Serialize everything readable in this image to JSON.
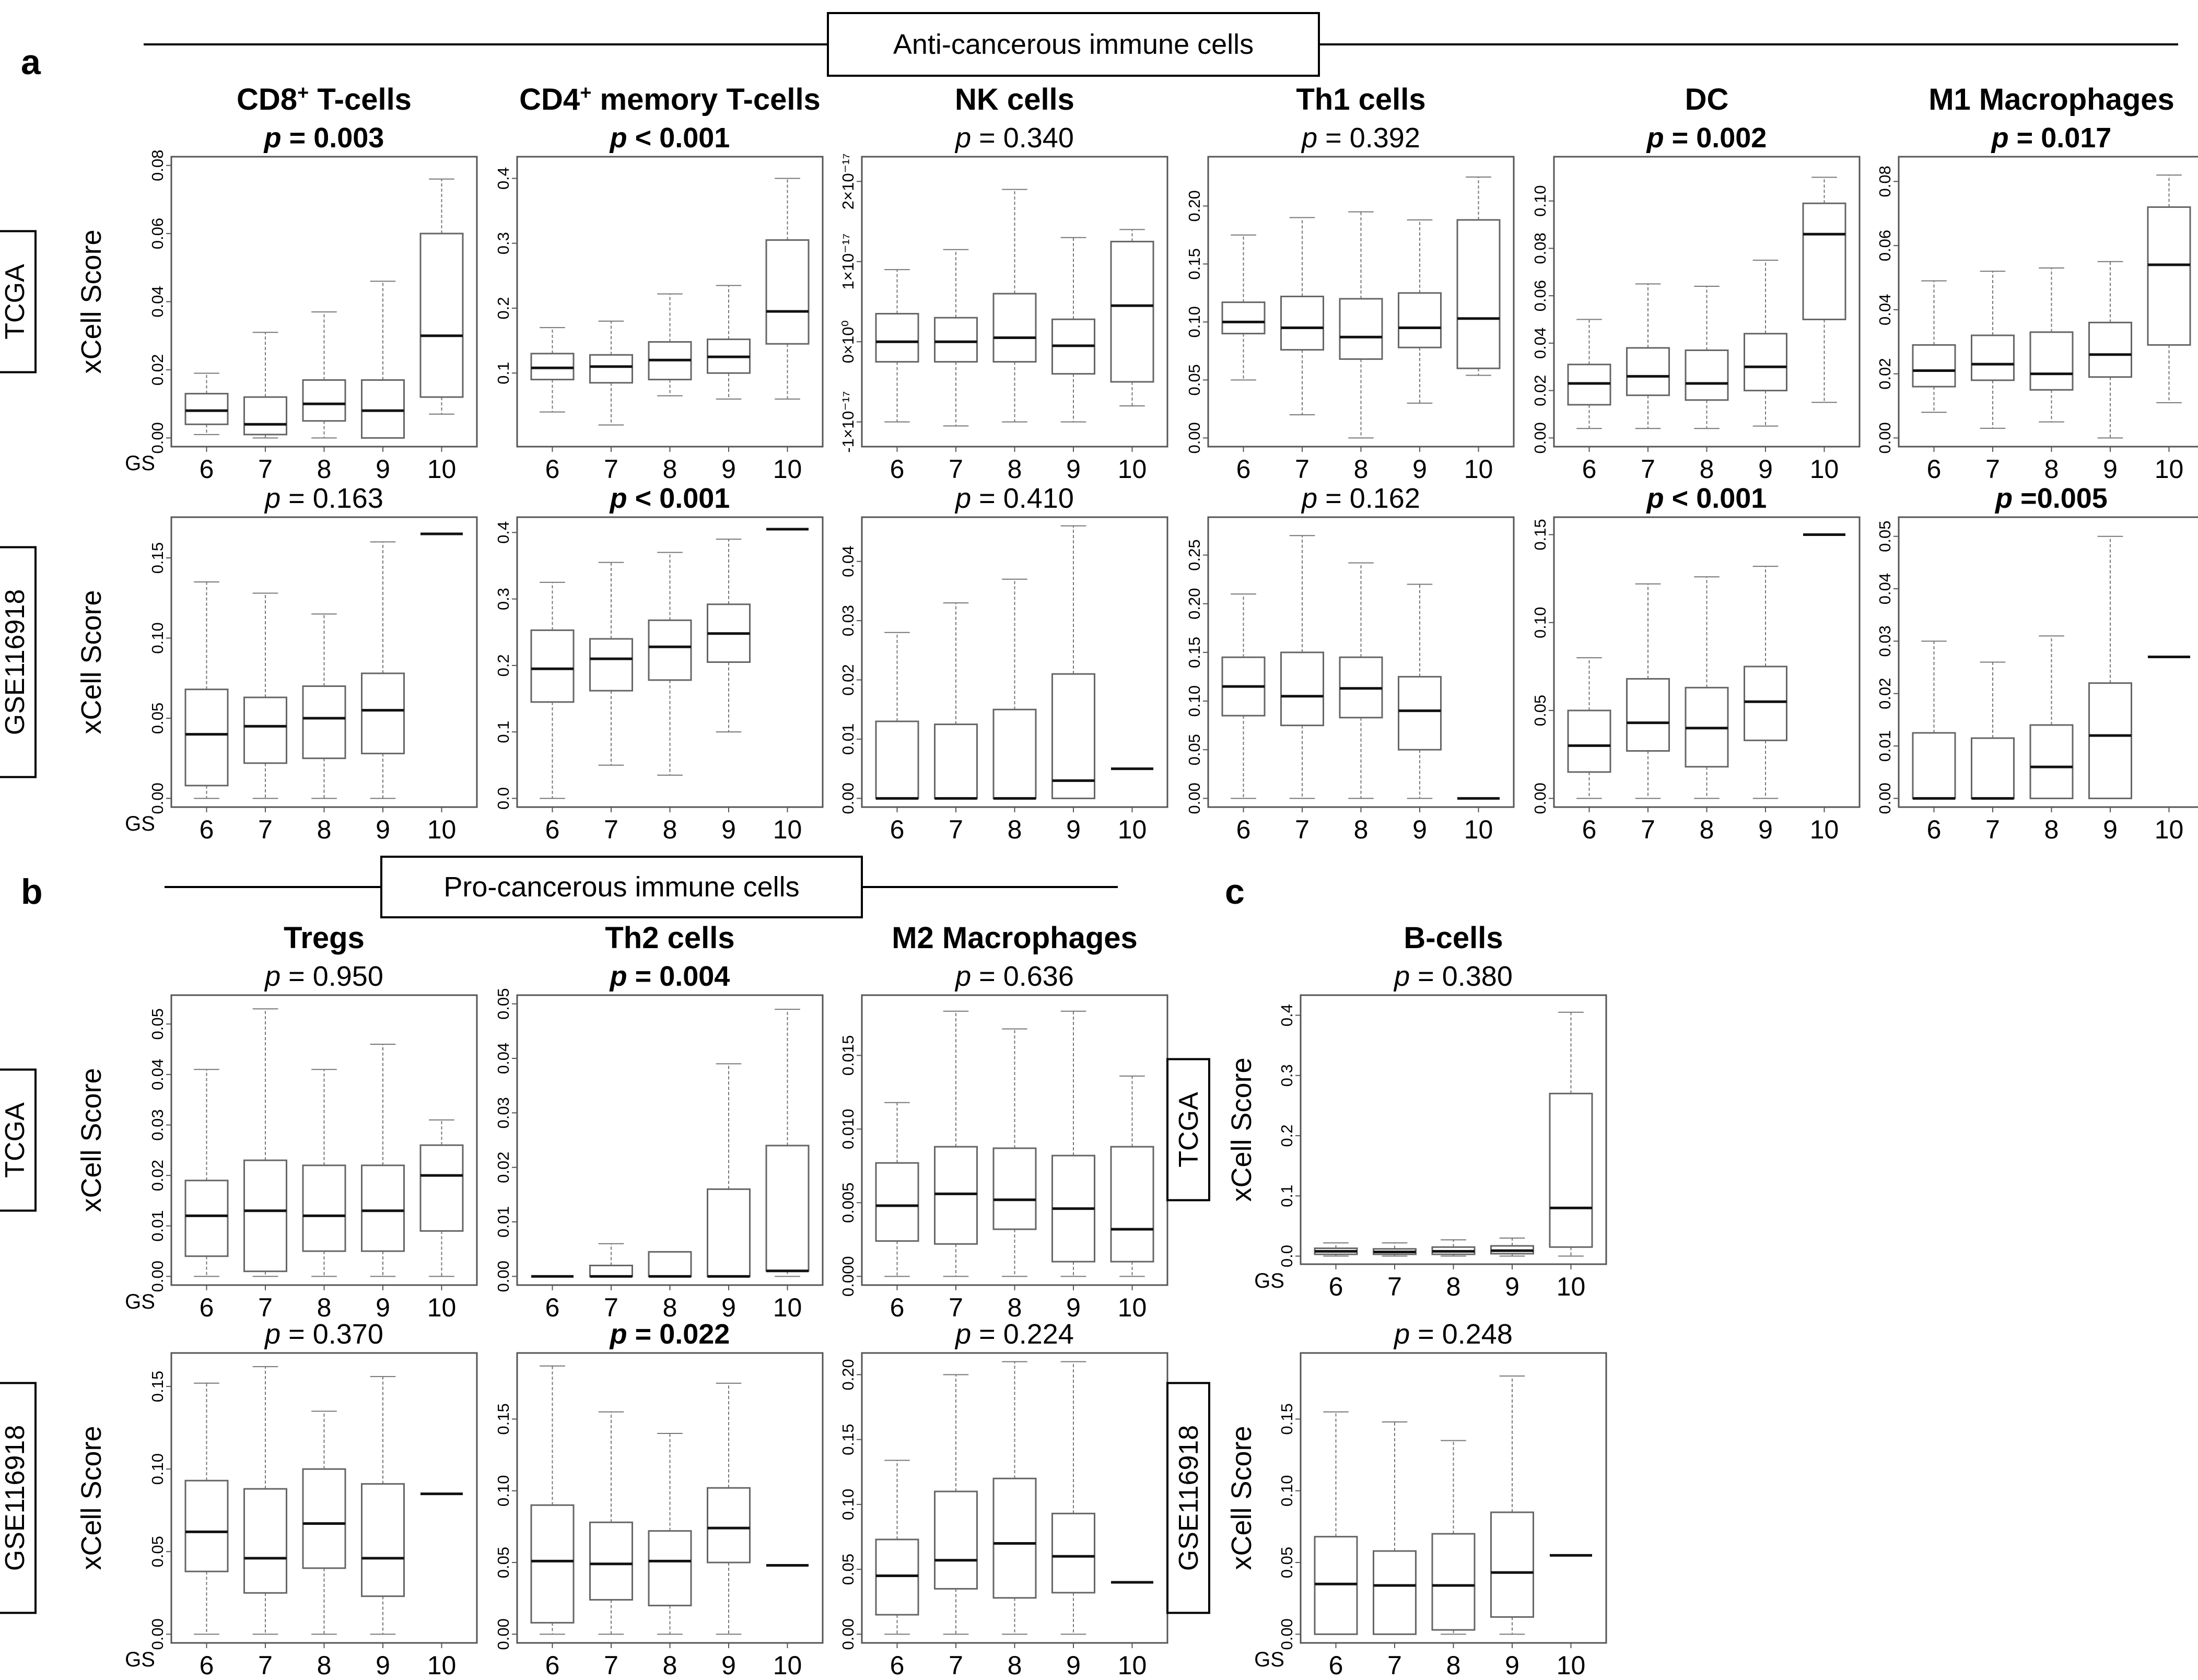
{
  "figure": {
    "sections": [
      {
        "letter": "a",
        "header": "Anti-cancerous immune cells"
      },
      {
        "letter": "b",
        "header": "Pro-cancerous immune cells"
      },
      {
        "letter": "c",
        "header": ""
      }
    ],
    "ylabel": "xCell Score",
    "gs_label": "GS",
    "datasets": [
      "TCGA",
      "GSE116918"
    ]
  },
  "chart_data": [
    {
      "type": "box",
      "section": "a",
      "cell": "CD8+ T-cells",
      "title": "CD8",
      "title_sup": "+",
      "title_rest": " T-cells",
      "dataset": "TCGA",
      "p": "0.003",
      "significant": true,
      "categories": [
        "6",
        "7",
        "8",
        "9",
        "10"
      ],
      "ylim": [
        0,
        0.08
      ],
      "yticks": [
        "0.00",
        "0.02",
        "0.04",
        "0.06",
        "0.08"
      ],
      "boxes": [
        [
          0.001,
          0.004,
          0.008,
          0.013,
          0.019
        ],
        [
          0.0,
          0.001,
          0.004,
          0.012,
          0.031
        ],
        [
          0.0,
          0.005,
          0.01,
          0.017,
          0.037
        ],
        [
          0.0,
          0.0,
          0.008,
          0.017,
          0.046
        ],
        [
          0.007,
          0.012,
          0.03,
          0.06,
          0.076
        ]
      ]
    },
    {
      "type": "box",
      "section": "a",
      "cell": "CD4+ memory T-cells",
      "title": "CD4",
      "title_sup": "+",
      "title_rest": " memory T-cells",
      "dataset": "TCGA",
      "p": "< 0.001",
      "significant": true,
      "categories": [
        "6",
        "7",
        "8",
        "9",
        "10"
      ],
      "ylim": [
        0.0,
        0.42
      ],
      "yticks": [
        "0.1",
        "0.2",
        "0.3",
        "0.4"
      ],
      "boxes": [
        [
          0.04,
          0.09,
          0.108,
          0.13,
          0.17
        ],
        [
          0.02,
          0.085,
          0.11,
          0.128,
          0.18
        ],
        [
          0.065,
          0.09,
          0.12,
          0.148,
          0.222
        ],
        [
          0.06,
          0.1,
          0.125,
          0.152,
          0.235
        ],
        [
          0.06,
          0.145,
          0.195,
          0.305,
          0.4
        ]
      ]
    },
    {
      "type": "box",
      "section": "a",
      "cell": "NK cells",
      "title": "NK cells",
      "dataset": "TCGA",
      "p": "0.340",
      "significant": false,
      "categories": [
        "6",
        "7",
        "8",
        "9",
        "10"
      ],
      "ylim": [
        -1.2,
        2.2
      ],
      "yticks": [
        "-1×10⁻¹⁷",
        "0×10⁰",
        "1×10⁻¹⁷",
        "2×10⁻¹⁷"
      ],
      "ytick_values": [
        -1,
        0,
        1,
        2
      ],
      "boxes": [
        [
          -1.0,
          -0.25,
          0.0,
          0.35,
          0.9
        ],
        [
          -1.05,
          -0.25,
          0.0,
          0.3,
          1.15
        ],
        [
          -1.0,
          -0.25,
          0.05,
          0.6,
          1.9
        ],
        [
          -1.0,
          -0.4,
          -0.05,
          0.28,
          1.3
        ],
        [
          -0.8,
          -0.5,
          0.45,
          1.25,
          1.4
        ]
      ]
    },
    {
      "type": "box",
      "section": "a",
      "cell": "Th1 cells",
      "title": "Th1 cells",
      "dataset": "TCGA",
      "p": "0.392",
      "significant": false,
      "categories": [
        "6",
        "7",
        "8",
        "9",
        "10"
      ],
      "ylim": [
        0,
        0.235
      ],
      "yticks": [
        "0.00",
        "0.05",
        "0.10",
        "0.15",
        "0.20"
      ],
      "boxes": [
        [
          0.05,
          0.09,
          0.1,
          0.117,
          0.175
        ],
        [
          0.02,
          0.076,
          0.095,
          0.122,
          0.19
        ],
        [
          0.0,
          0.068,
          0.087,
          0.12,
          0.195
        ],
        [
          0.03,
          0.078,
          0.095,
          0.125,
          0.188
        ],
        [
          0.054,
          0.06,
          0.103,
          0.188,
          0.225
        ]
      ]
    },
    {
      "type": "box",
      "section": "a",
      "cell": "DC",
      "title": "DC",
      "dataset": "TCGA",
      "p": "0.002",
      "significant": true,
      "categories": [
        "6",
        "7",
        "8",
        "9",
        "10"
      ],
      "ylim": [
        0,
        0.115
      ],
      "yticks": [
        "0.00",
        "0.02",
        "0.04",
        "0.06",
        "0.08",
        "0.10"
      ],
      "boxes": [
        [
          0.004,
          0.014,
          0.023,
          0.031,
          0.05
        ],
        [
          0.004,
          0.018,
          0.026,
          0.038,
          0.065
        ],
        [
          0.004,
          0.016,
          0.023,
          0.037,
          0.064
        ],
        [
          0.005,
          0.02,
          0.03,
          0.044,
          0.075
        ],
        [
          0.015,
          0.05,
          0.086,
          0.099,
          0.11
        ]
      ]
    },
    {
      "type": "box",
      "section": "a",
      "cell": "M1 Macrophages",
      "title": "M1 Macrophages",
      "dataset": "TCGA",
      "p": "0.017",
      "significant": true,
      "categories": [
        "6",
        "7",
        "8",
        "9",
        "10"
      ],
      "ylim": [
        0,
        0.085
      ],
      "yticks": [
        "0.00",
        "0.02",
        "0.04",
        "0.06",
        "0.08"
      ],
      "boxes": [
        [
          0.008,
          0.016,
          0.021,
          0.029,
          0.049
        ],
        [
          0.003,
          0.018,
          0.023,
          0.032,
          0.052
        ],
        [
          0.005,
          0.015,
          0.02,
          0.033,
          0.053
        ],
        [
          0.0,
          0.019,
          0.026,
          0.036,
          0.055
        ],
        [
          0.011,
          0.029,
          0.054,
          0.072,
          0.082
        ]
      ]
    },
    {
      "type": "box",
      "section": "a",
      "cell": "CD8+ T-cells",
      "dataset": "GSE116918",
      "p": "0.163",
      "significant": false,
      "categories": [
        "6",
        "7",
        "8",
        "9",
        "10"
      ],
      "ylim": [
        0,
        0.17
      ],
      "yticks": [
        "0.00",
        "0.05",
        "0.10",
        "0.15"
      ],
      "boxes": [
        [
          0.0,
          0.008,
          0.04,
          0.068,
          0.135
        ],
        [
          0.0,
          0.022,
          0.045,
          0.063,
          0.128
        ],
        [
          0.0,
          0.025,
          0.05,
          0.07,
          0.115
        ],
        [
          0.0,
          0.028,
          0.055,
          0.078,
          0.16
        ],
        [
          0.165,
          0.165,
          0.165,
          0.165,
          0.165
        ]
      ]
    },
    {
      "type": "box",
      "section": "a",
      "cell": "CD4+ memory T-cells",
      "dataset": "GSE116918",
      "p": "< 0.001",
      "significant": true,
      "categories": [
        "6",
        "7",
        "8",
        "9",
        "10"
      ],
      "ylim": [
        0,
        0.41
      ],
      "yticks": [
        "0.0",
        "0.1",
        "0.2",
        "0.3",
        "0.4"
      ],
      "boxes": [
        [
          0.0,
          0.145,
          0.195,
          0.253,
          0.325
        ],
        [
          0.05,
          0.162,
          0.21,
          0.24,
          0.355
        ],
        [
          0.035,
          0.178,
          0.228,
          0.268,
          0.37
        ],
        [
          0.1,
          0.205,
          0.248,
          0.292,
          0.39
        ],
        [
          0.405,
          0.405,
          0.405,
          0.405,
          0.405
        ]
      ]
    },
    {
      "type": "box",
      "section": "a",
      "cell": "NK cells",
      "dataset": "GSE116918",
      "p": "0.410",
      "significant": false,
      "categories": [
        "6",
        "7",
        "8",
        "9",
        "10"
      ],
      "ylim": [
        0,
        0.046
      ],
      "yticks": [
        "0.00",
        "0.01",
        "0.02",
        "0.03",
        "0.04"
      ],
      "boxes": [
        [
          0.0,
          0.0,
          0.0,
          0.013,
          0.028
        ],
        [
          0.0,
          0.0,
          0.0,
          0.0125,
          0.033
        ],
        [
          0.0,
          0.0,
          0.0,
          0.015,
          0.037
        ],
        [
          0.0,
          0.0,
          0.003,
          0.021,
          0.046
        ],
        [
          0.005,
          0.005,
          0.005,
          0.005,
          0.005
        ]
      ]
    },
    {
      "type": "box",
      "section": "a",
      "cell": "Th1 cells",
      "dataset": "GSE116918",
      "p": "0.162",
      "significant": false,
      "categories": [
        "6",
        "7",
        "8",
        "9",
        "10"
      ],
      "ylim": [
        0,
        0.28
      ],
      "yticks": [
        "0.00",
        "0.05",
        "0.10",
        "0.15",
        "0.20",
        "0.25"
      ],
      "boxes": [
        [
          0.0,
          0.085,
          0.115,
          0.145,
          0.21
        ],
        [
          0.0,
          0.075,
          0.105,
          0.15,
          0.27
        ],
        [
          0.0,
          0.083,
          0.113,
          0.145,
          0.242
        ],
        [
          0.0,
          0.05,
          0.09,
          0.125,
          0.22
        ],
        [
          0.0,
          0.0,
          0.0,
          0.0,
          0.0
        ]
      ]
    },
    {
      "type": "box",
      "section": "a",
      "cell": "DC",
      "dataset": "GSE116918",
      "p": "< 0.001",
      "significant": true,
      "categories": [
        "6",
        "7",
        "8",
        "9",
        "10"
      ],
      "ylim": [
        0,
        0.155
      ],
      "yticks": [
        "0.00",
        "0.05",
        "0.10",
        "0.15"
      ],
      "boxes": [
        [
          0.0,
          0.015,
          0.03,
          0.05,
          0.08
        ],
        [
          0.0,
          0.027,
          0.043,
          0.068,
          0.122
        ],
        [
          0.0,
          0.018,
          0.04,
          0.063,
          0.126
        ],
        [
          0.0,
          0.033,
          0.055,
          0.075,
          0.132
        ],
        [
          0.15,
          0.15,
          0.15,
          0.15,
          0.15
        ]
      ]
    },
    {
      "type": "box",
      "section": "a",
      "cell": "M1 Macrophages",
      "dataset": "GSE116918",
      "p": "=0.005",
      "significant": true,
      "categories": [
        "6",
        "7",
        "8",
        "9",
        "10"
      ],
      "ylim": [
        0,
        0.052
      ],
      "yticks": [
        "0.00",
        "0.01",
        "0.02",
        "0.03",
        "0.04",
        "0.05"
      ],
      "boxes": [
        [
          0.0,
          0.0,
          0.0,
          0.0125,
          0.03
        ],
        [
          0.0,
          0.0,
          0.0,
          0.0115,
          0.026
        ],
        [
          0.0,
          0.0,
          0.006,
          0.014,
          0.031
        ],
        [
          0.0,
          0.0,
          0.012,
          0.022,
          0.05
        ],
        [
          0.027,
          0.027,
          0.027,
          0.027,
          0.027
        ]
      ]
    },
    {
      "type": "box",
      "section": "b",
      "cell": "Tregs",
      "title": "Tregs",
      "dataset": "TCGA",
      "p": "0.950",
      "significant": false,
      "categories": [
        "6",
        "7",
        "8",
        "9",
        "10"
      ],
      "ylim": [
        0,
        0.054
      ],
      "yticks": [
        "0.00",
        "0.01",
        "0.02",
        "0.03",
        "0.04",
        "0.05"
      ],
      "boxes": [
        [
          0.0,
          0.004,
          0.012,
          0.019,
          0.041
        ],
        [
          0.0,
          0.001,
          0.013,
          0.023,
          0.053
        ],
        [
          0.0,
          0.005,
          0.012,
          0.022,
          0.041
        ],
        [
          0.0,
          0.005,
          0.013,
          0.022,
          0.046
        ],
        [
          0.0,
          0.009,
          0.02,
          0.026,
          0.031
        ]
      ]
    },
    {
      "type": "box",
      "section": "b",
      "cell": "Th2 cells",
      "title": "Th2 cells",
      "dataset": "TCGA",
      "p": "0.004",
      "significant": true,
      "categories": [
        "6",
        "7",
        "8",
        "9",
        "10"
      ],
      "ylim": [
        0,
        0.05
      ],
      "yticks": [
        "0.00",
        "0.01",
        "0.02",
        "0.03",
        "0.04",
        "0.05"
      ],
      "boxes": [
        [
          0.0,
          0.0,
          0.0,
          0.0,
          0.0
        ],
        [
          0.0,
          0.0,
          0.0,
          0.002,
          0.006
        ],
        [
          0.0,
          0.0,
          0.0,
          0.0045,
          0.0045
        ],
        [
          0.0,
          0.0,
          0.0,
          0.016,
          0.039
        ],
        [
          0.0,
          0.001,
          0.001,
          0.024,
          0.049
        ]
      ]
    },
    {
      "type": "box",
      "section": "b",
      "cell": "M2 Macrophages",
      "title": "M2 Macrophages",
      "dataset": "TCGA",
      "p": "0.636",
      "significant": false,
      "categories": [
        "6",
        "7",
        "8",
        "9",
        "10"
      ],
      "ylim": [
        0,
        0.0185
      ],
      "yticks": [
        "0.000",
        "0.005",
        "0.010",
        "0.015"
      ],
      "boxes": [
        [
          0.0,
          0.0024,
          0.0048,
          0.0077,
          0.0118
        ],
        [
          0.0,
          0.0022,
          0.0056,
          0.0088,
          0.018
        ],
        [
          0.0,
          0.0032,
          0.0052,
          0.0087,
          0.0168
        ],
        [
          0.0,
          0.001,
          0.0046,
          0.0082,
          0.018
        ],
        [
          0.0,
          0.001,
          0.0032,
          0.0088,
          0.0136
        ]
      ]
    },
    {
      "type": "box",
      "section": "b",
      "cell": "Tregs",
      "dataset": "GSE116918",
      "p": "0.370",
      "significant": false,
      "categories": [
        "6",
        "7",
        "8",
        "9",
        "10"
      ],
      "ylim": [
        0,
        0.165
      ],
      "yticks": [
        "0.00",
        "0.05",
        "0.10",
        "0.15"
      ],
      "boxes": [
        [
          0.0,
          0.038,
          0.062,
          0.093,
          0.152
        ],
        [
          0.0,
          0.025,
          0.046,
          0.088,
          0.162
        ],
        [
          0.0,
          0.04,
          0.067,
          0.1,
          0.135
        ],
        [
          0.0,
          0.023,
          0.046,
          0.091,
          0.156
        ],
        [
          0.085,
          0.085,
          0.085,
          0.085,
          0.085
        ]
      ]
    },
    {
      "type": "box",
      "section": "b",
      "cell": "Th2 cells",
      "dataset": "GSE116918",
      "p": "0.022",
      "significant": true,
      "categories": [
        "6",
        "7",
        "8",
        "9",
        "10"
      ],
      "ylim": [
        0,
        0.19
      ],
      "yticks": [
        "0.00",
        "0.05",
        "0.10",
        "0.15"
      ],
      "boxes": [
        [
          0.0,
          0.008,
          0.051,
          0.09,
          0.187
        ],
        [
          0.0,
          0.024,
          0.049,
          0.078,
          0.155
        ],
        [
          0.0,
          0.02,
          0.051,
          0.072,
          0.14
        ],
        [
          0.0,
          0.05,
          0.074,
          0.102,
          0.175
        ],
        [
          0.048,
          0.048,
          0.048,
          0.048,
          0.048
        ]
      ]
    },
    {
      "type": "box",
      "section": "b",
      "cell": "M2 Macrophages",
      "dataset": "GSE116918",
      "p": "0.224",
      "significant": false,
      "categories": [
        "6",
        "7",
        "8",
        "9",
        "10"
      ],
      "ylim": [
        0,
        0.21
      ],
      "yticks": [
        "0.00",
        "0.05",
        "0.10",
        "0.15",
        "0.20"
      ],
      "boxes": [
        [
          0.0,
          0.015,
          0.045,
          0.073,
          0.134
        ],
        [
          0.0,
          0.035,
          0.057,
          0.11,
          0.2
        ],
        [
          0.0,
          0.028,
          0.07,
          0.12,
          0.21
        ],
        [
          0.0,
          0.032,
          0.06,
          0.093,
          0.21
        ],
        [
          0.04,
          0.04,
          0.04,
          0.04,
          0.04
        ]
      ]
    },
    {
      "type": "box",
      "section": "c",
      "cell": "B-cells",
      "title": "B-cells",
      "dataset": "TCGA",
      "p": "0.380",
      "significant": false,
      "categories": [
        "6",
        "7",
        "8",
        "9",
        "10"
      ],
      "ylim": [
        0,
        0.42
      ],
      "yticks": [
        "0.0",
        "0.1",
        "0.2",
        "0.3",
        "0.4"
      ],
      "boxes": [
        [
          0.0,
          0.003,
          0.008,
          0.013,
          0.022
        ],
        [
          0.0,
          0.003,
          0.007,
          0.012,
          0.022
        ],
        [
          0.0,
          0.003,
          0.008,
          0.015,
          0.027
        ],
        [
          0.0,
          0.004,
          0.009,
          0.017,
          0.03
        ],
        [
          0.0,
          0.015,
          0.08,
          0.27,
          0.405
        ]
      ]
    },
    {
      "type": "box",
      "section": "c",
      "cell": "B-cells",
      "dataset": "GSE116918",
      "p": "0.248",
      "significant": false,
      "categories": [
        "6",
        "7",
        "8",
        "9",
        "10"
      ],
      "ylim": [
        0,
        0.19
      ],
      "yticks": [
        "0.00",
        "0.05",
        "0.10",
        "0.15"
      ],
      "boxes": [
        [
          0.0,
          0.0,
          0.035,
          0.068,
          0.155
        ],
        [
          0.0,
          0.0,
          0.034,
          0.058,
          0.148
        ],
        [
          0.0,
          0.003,
          0.034,
          0.07,
          0.135
        ],
        [
          0.0,
          0.012,
          0.043,
          0.085,
          0.18
        ],
        [
          0.055,
          0.055,
          0.055,
          0.055,
          0.055
        ]
      ]
    }
  ]
}
